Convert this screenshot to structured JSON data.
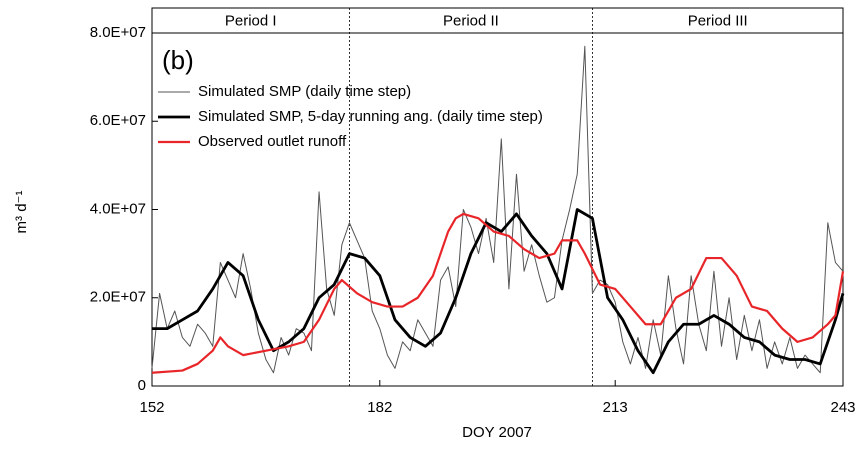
{
  "chart_data": {
    "type": "line",
    "panel_label": "(b)",
    "xlabel": "DOY 2007",
    "ylabel": "m³ d⁻¹",
    "xlim": [
      152,
      243
    ],
    "xticks": [
      152,
      182,
      213,
      243
    ],
    "ylim": [
      0,
      80000000.0
    ],
    "yticks": [
      0,
      {
        "value": 20000000.0,
        "label": "2.0E+07"
      },
      {
        "value": 40000000.0,
        "label": "4.0E+07"
      },
      {
        "value": 60000000.0,
        "label": "6.0E+07"
      },
      {
        "value": 80000000.0,
        "label": "8.0E+07"
      }
    ],
    "grid": false,
    "legend": "upper-left",
    "periods": [
      {
        "label": "Period I",
        "start": 152,
        "end": 178
      },
      {
        "label": "Period II",
        "start": 178,
        "end": 210
      },
      {
        "label": "Period III",
        "start": 210,
        "end": 243
      }
    ],
    "series": [
      {
        "name": "Simulated SMP (daily time step)",
        "color": "#555555",
        "width": 1,
        "x": [
          152,
          153,
          154,
          155,
          156,
          157,
          158,
          159,
          160,
          161,
          162,
          163,
          164,
          165,
          166,
          167,
          168,
          169,
          170,
          171,
          172,
          173,
          174,
          175,
          176,
          177,
          178,
          179,
          180,
          181,
          182,
          183,
          184,
          185,
          186,
          187,
          188,
          189,
          190,
          191,
          192,
          193,
          194,
          195,
          196,
          197,
          198,
          199,
          200,
          201,
          202,
          203,
          204,
          205,
          206,
          207,
          208,
          209,
          210,
          211,
          212,
          213,
          214,
          215,
          216,
          217,
          218,
          219,
          220,
          221,
          222,
          223,
          224,
          225,
          226,
          227,
          228,
          229,
          230,
          231,
          232,
          233,
          234,
          235,
          236,
          237,
          238,
          239,
          240,
          241,
          242,
          243
        ],
        "values": [
          4000000.0,
          21000000.0,
          13000000.0,
          17000000.0,
          11000000.0,
          9000000.0,
          14000000.0,
          12000000.0,
          9000000.0,
          28000000.0,
          24000000.0,
          20000000.0,
          30000000.0,
          22000000.0,
          12000000.0,
          6000000.0,
          3000000.0,
          11000000.0,
          7000000.0,
          13000000.0,
          12000000.0,
          8000000.0,
          44000000.0,
          22000000.0,
          16000000.0,
          32000000.0,
          37000000.0,
          33000000.0,
          29000000.0,
          17000000.0,
          13000000.0,
          7000000.0,
          4000000.0,
          10000000.0,
          8000000.0,
          15000000.0,
          12000000.0,
          9000000.0,
          24000000.0,
          27000000.0,
          18000000.0,
          40000000.0,
          36000000.0,
          30000000.0,
          38000000.0,
          28000000.0,
          56000000.0,
          22000000.0,
          48000000.0,
          26000000.0,
          32000000.0,
          25000000.0,
          19000000.0,
          20000000.0,
          33000000.0,
          40000000.0,
          48000000.0,
          77000000.0,
          21000000.0,
          24000000.0,
          23000000.0,
          19000000.0,
          10000000.0,
          5000000.0,
          11000000.0,
          4000000.0,
          15000000.0,
          7000000.0,
          25000000.0,
          13000000.0,
          5000000.0,
          25000000.0,
          14000000.0,
          8000000.0,
          26000000.0,
          9000000.0,
          20000000.0,
          6000000.0,
          16000000.0,
          8000000.0,
          15000000.0,
          4000000.0,
          10000000.0,
          5000000.0,
          11000000.0,
          4000000.0,
          7000000.0,
          5000000.0,
          3000000.0,
          37000000.0,
          28000000.0,
          26000000.0
        ]
      },
      {
        "name": "Simulated SMP, 5-day running ang. (daily time step)",
        "color": "#000000",
        "width": 2.8,
        "x": [
          152,
          154,
          156,
          158,
          160,
          162,
          164,
          166,
          168,
          170,
          172,
          174,
          176,
          178,
          180,
          182,
          184,
          186,
          188,
          190,
          192,
          194,
          196,
          198,
          200,
          202,
          204,
          206,
          208,
          210,
          212,
          214,
          216,
          218,
          220,
          222,
          224,
          226,
          228,
          230,
          232,
          234,
          236,
          238,
          240,
          242,
          243
        ],
        "values": [
          13000000.0,
          13000000.0,
          15000000.0,
          17000000.0,
          22000000.0,
          28000000.0,
          25000000.0,
          15000000.0,
          8000000.0,
          10000000.0,
          13000000.0,
          20000000.0,
          23000000.0,
          30000000.0,
          29000000.0,
          25000000.0,
          15000000.0,
          11000000.0,
          9000000.0,
          12000000.0,
          20000000.0,
          30000000.0,
          37000000.0,
          35000000.0,
          39000000.0,
          34000000.0,
          30000000.0,
          22000000.0,
          40000000.0,
          38000000.0,
          20000000.0,
          15000000.0,
          8000000.0,
          3000000.0,
          10000000.0,
          14000000.0,
          14000000.0,
          16000000.0,
          14000000.0,
          11000000.0,
          10000000.0,
          7000000.0,
          6000000.0,
          6000000.0,
          5000000.0,
          15000000.0,
          21000000.0
        ]
      },
      {
        "name": "Observed outlet runoff",
        "color": "#e8262a",
        "width": 2.2,
        "x": [
          152,
          156,
          158,
          160,
          161,
          162,
          164,
          167,
          170,
          172,
          174,
          176,
          177,
          179,
          181,
          183,
          185,
          187,
          189,
          191,
          192,
          193,
          195,
          197,
          199,
          201,
          203,
          205,
          206,
          208,
          209,
          211,
          213,
          215,
          217,
          219,
          221,
          223,
          225,
          227,
          229,
          231,
          233,
          235,
          237,
          239,
          241,
          242,
          243
        ],
        "values": [
          3000000.0,
          3500000.0,
          5000000.0,
          8000000.0,
          11000000.0,
          9000000.0,
          7000000.0,
          8000000.0,
          9000000.0,
          10000000.0,
          15000000.0,
          22000000.0,
          24000000.0,
          21000000.0,
          19000000.0,
          18000000.0,
          18000000.0,
          20000000.0,
          25000000.0,
          35000000.0,
          38000000.0,
          39000000.0,
          38000000.0,
          35000000.0,
          34000000.0,
          31000000.0,
          29000000.0,
          30000000.0,
          33000000.0,
          33000000.0,
          30000000.0,
          23000000.0,
          22000000.0,
          18000000.0,
          14000000.0,
          14000000.0,
          20000000.0,
          22000000.0,
          29000000.0,
          29000000.0,
          25000000.0,
          18000000.0,
          17000000.0,
          13000000.0,
          10000000.0,
          11000000.0,
          14000000.0,
          16000000.0,
          26000000.0
        ]
      }
    ]
  }
}
